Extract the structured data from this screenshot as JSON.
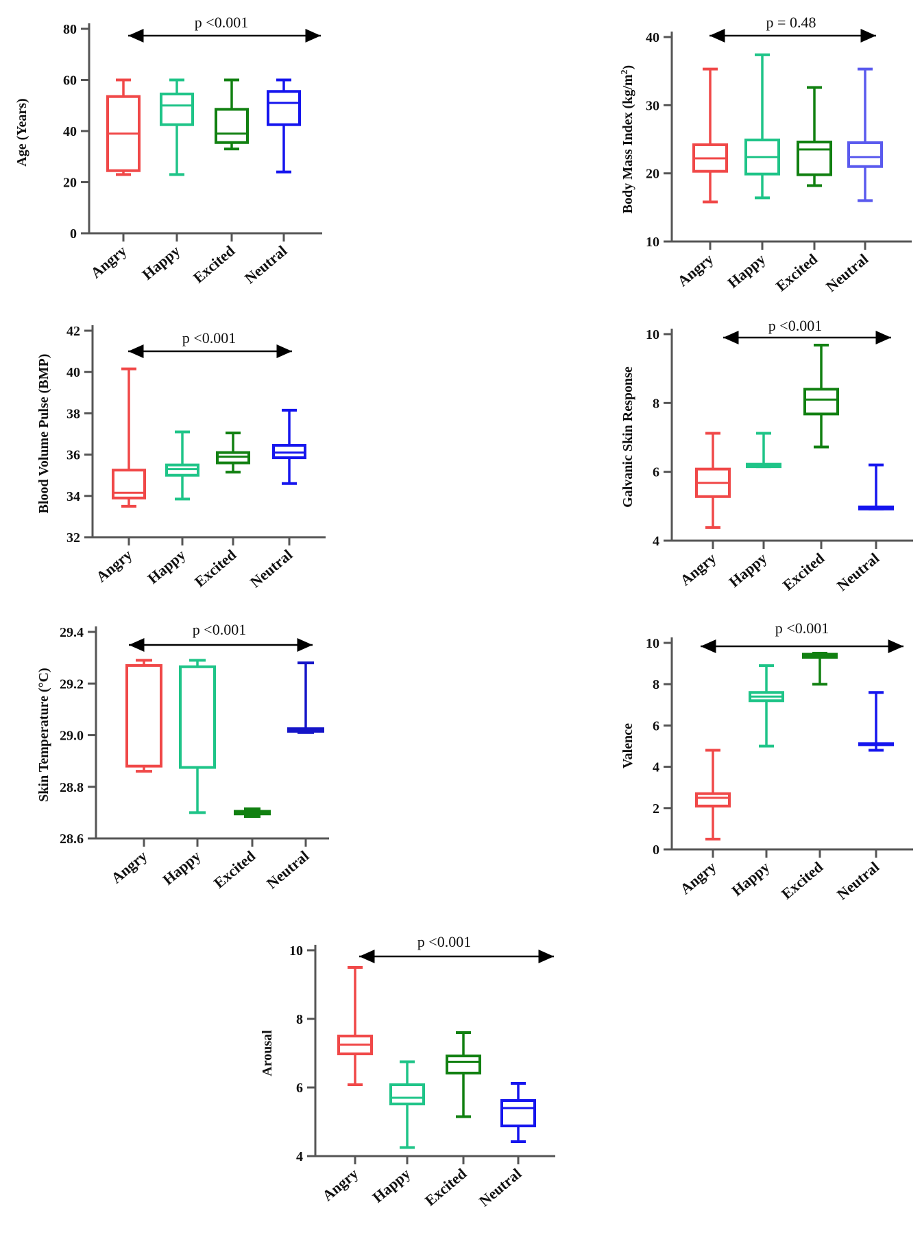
{
  "chart_data": [
    {
      "type": "box",
      "title": "",
      "ylabel": "Age (Years)",
      "ylim": [
        0,
        80
      ],
      "yticks": [
        0,
        20,
        40,
        60,
        80
      ],
      "categories": [
        "Angry",
        "Happy",
        "Excited",
        "Neutral"
      ],
      "colors": [
        "#f04848",
        "#1fc488",
        "#118011",
        "#1515ee"
      ],
      "boxes": [
        {
          "min": 23,
          "q1": 24.5,
          "median": 39,
          "q3": 53.5,
          "max": 60
        },
        {
          "min": 23,
          "q1": 42.5,
          "median": 50,
          "q3": 54.5,
          "max": 60
        },
        {
          "min": 33,
          "q1": 35.5,
          "median": 39,
          "q3": 48.5,
          "max": 60
        },
        {
          "min": 24,
          "q1": 42.5,
          "median": 51,
          "q3": 55.5,
          "max": 60
        }
      ],
      "p_label": "p <0.001",
      "p_span": [
        "Angry",
        "Neutral"
      ]
    },
    {
      "type": "box",
      "title": "",
      "ylabel": "Body Mass Index (kg/m",
      "ylabel_sup": "2",
      "ylabel_close": ")",
      "ylim": [
        10,
        40
      ],
      "yticks": [
        10,
        20,
        30,
        40
      ],
      "categories": [
        "Angry",
        "Happy",
        "Excited",
        "Neutral"
      ],
      "colors": [
        "#f04848",
        "#1fc488",
        "#118011",
        "#5a5aee"
      ],
      "boxes": [
        {
          "min": 15.8,
          "q1": 20.3,
          "median": 22.2,
          "q3": 24.2,
          "max": 35.3
        },
        {
          "min": 16.4,
          "q1": 19.9,
          "median": 22.4,
          "q3": 24.9,
          "max": 37.4
        },
        {
          "min": 18.2,
          "q1": 19.8,
          "median": 23.5,
          "q3": 24.6,
          "max": 32.6
        },
        {
          "min": 16.0,
          "q1": 21.0,
          "median": 22.4,
          "q3": 24.5,
          "max": 35.3
        }
      ],
      "p_label": "p = 0.48",
      "p_span": [
        "Angry",
        "Neutral"
      ]
    },
    {
      "type": "box",
      "title": "",
      "ylabel": "Blood Volume Pulse (BMP)",
      "ylim": [
        32,
        42
      ],
      "yticks": [
        32,
        34,
        36,
        38,
        40,
        42
      ],
      "categories": [
        "Angry",
        "Happy",
        "Excited",
        "Neutral"
      ],
      "colors": [
        "#f04848",
        "#1fc488",
        "#118011",
        "#1515ee"
      ],
      "boxes": [
        {
          "min": 33.5,
          "q1": 33.9,
          "median": 34.15,
          "q3": 35.25,
          "max": 40.15
        },
        {
          "min": 33.85,
          "q1": 35.0,
          "median": 35.3,
          "q3": 35.5,
          "max": 37.1
        },
        {
          "min": 35.15,
          "q1": 35.6,
          "median": 35.9,
          "q3": 36.1,
          "max": 37.05
        },
        {
          "min": 34.6,
          "q1": 35.85,
          "median": 36.1,
          "q3": 36.45,
          "max": 38.15
        }
      ],
      "p_label": "p <0.001",
      "p_span": [
        "Angry",
        "Neutral"
      ]
    },
    {
      "type": "box",
      "title": "",
      "ylabel": "Galvanic Skin Response",
      "ylim": [
        4,
        10
      ],
      "yticks": [
        4,
        6,
        8,
        10
      ],
      "categories": [
        "Angry",
        "Happy",
        "Excited",
        "Neutral"
      ],
      "colors": [
        "#f04848",
        "#1fc488",
        "#118011",
        "#1515ee"
      ],
      "boxes": [
        {
          "min": 4.38,
          "q1": 5.28,
          "median": 5.68,
          "q3": 6.08,
          "max": 7.12
        },
        {
          "min": 6.15,
          "q1": 6.15,
          "median": 6.18,
          "q3": 6.22,
          "max": 7.12
        },
        {
          "min": 6.72,
          "q1": 7.68,
          "median": 8.1,
          "q3": 8.4,
          "max": 9.68
        },
        {
          "min": 4.92,
          "q1": 4.92,
          "median": 4.95,
          "q3": 4.98,
          "max": 6.2
        }
      ],
      "p_label": "p <0.001",
      "p_span": [
        "Angry",
        "Neutral"
      ]
    },
    {
      "type": "box",
      "title": "",
      "ylabel": "Skin Temperature (°C)",
      "ylim": [
        28.6,
        29.4
      ],
      "yticks": [
        28.6,
        28.8,
        29.0,
        29.2,
        29.4
      ],
      "yticklabels": [
        "28.6",
        "28.8",
        "29.0",
        "29.2",
        "29.4"
      ],
      "categories": [
        "Angry",
        "Happy",
        "Excited",
        "Neutral"
      ],
      "colors": [
        "#f04848",
        "#1fc488",
        "#118011",
        "#1515c8"
      ],
      "boxes": [
        {
          "min": 28.86,
          "q1": 28.88,
          "median": 28.88,
          "q3": 29.27,
          "max": 29.29
        },
        {
          "min": 28.7,
          "q1": 28.875,
          "median": 29.265,
          "q3": 29.265,
          "max": 29.29
        },
        {
          "min": 28.685,
          "q1": 28.695,
          "median": 28.7,
          "q3": 28.705,
          "max": 28.715
        },
        {
          "min": 29.01,
          "q1": 29.015,
          "median": 29.02,
          "q3": 29.025,
          "max": 29.28
        }
      ],
      "p_label": "p <0.001",
      "p_span": [
        "Angry",
        "Neutral"
      ]
    },
    {
      "type": "box",
      "title": "",
      "ylabel": "Valence",
      "ylim": [
        0,
        10
      ],
      "yticks": [
        0,
        2,
        4,
        6,
        8,
        10
      ],
      "categories": [
        "Angry",
        "Happy",
        "Excited",
        "Neutral"
      ],
      "colors": [
        "#f04848",
        "#1fc488",
        "#118011",
        "#1515ee"
      ],
      "boxes": [
        {
          "min": 0.5,
          "q1": 2.1,
          "median": 2.5,
          "q3": 2.7,
          "max": 4.8
        },
        {
          "min": 5.0,
          "q1": 7.2,
          "median": 7.4,
          "q3": 7.6,
          "max": 8.9
        },
        {
          "min": 8.0,
          "q1": 9.3,
          "median": 9.4,
          "q3": 9.45,
          "max": 9.5
        },
        {
          "min": 4.8,
          "q1": 5.08,
          "median": 5.1,
          "q3": 5.12,
          "max": 7.6
        }
      ],
      "p_label": "p <0.001",
      "p_span": [
        "Angry",
        "Neutral"
      ]
    },
    {
      "type": "box",
      "title": "",
      "ylabel": "Arousal",
      "ylim": [
        4,
        10
      ],
      "yticks": [
        4,
        6,
        8,
        10
      ],
      "categories": [
        "Angry",
        "Happy",
        "Excited",
        "Neutral"
      ],
      "colors": [
        "#f04848",
        "#1fc488",
        "#118011",
        "#1515ee"
      ],
      "boxes": [
        {
          "min": 6.08,
          "q1": 6.98,
          "median": 7.25,
          "q3": 7.5,
          "max": 9.5
        },
        {
          "min": 4.25,
          "q1": 5.52,
          "median": 5.7,
          "q3": 6.08,
          "max": 6.75
        },
        {
          "min": 5.15,
          "q1": 6.42,
          "median": 6.75,
          "q3": 6.92,
          "max": 7.6
        },
        {
          "min": 4.42,
          "q1": 4.88,
          "median": 5.4,
          "q3": 5.62,
          "max": 6.12
        }
      ],
      "p_label": "p <0.001",
      "p_span": [
        "Angry",
        "Neutral"
      ]
    }
  ]
}
